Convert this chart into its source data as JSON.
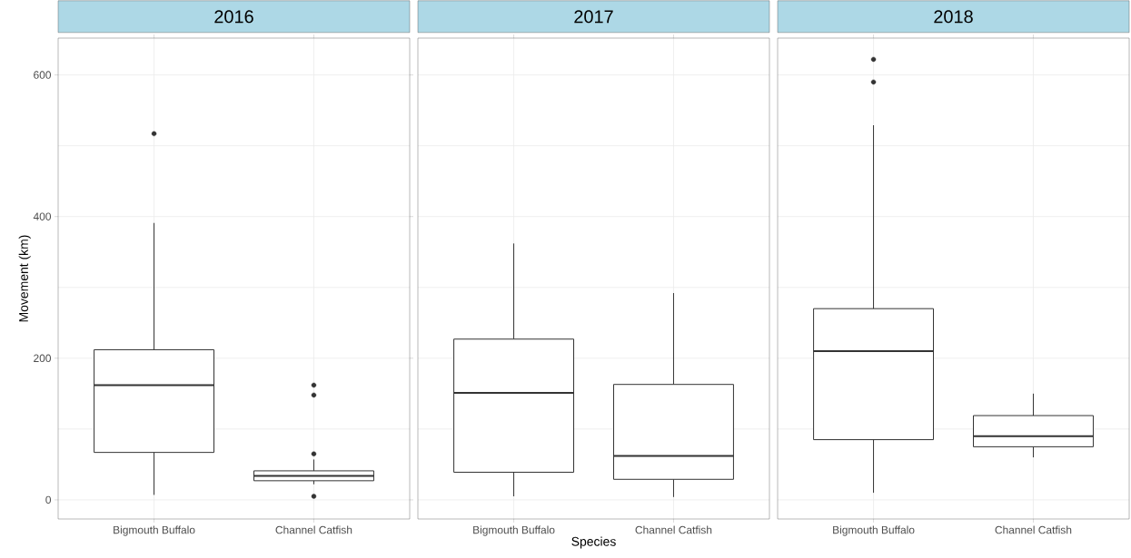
{
  "chart_data": [
    {
      "type": "box",
      "title": "2016",
      "ylabel": "Movement (km)",
      "categories": [
        "Bigmouth Buffalo",
        "Channel Catfish"
      ],
      "color": "#333333",
      "boxes": [
        {
          "low": 7,
          "q1": 67,
          "median": 162,
          "q3": 212,
          "high": 391,
          "outliers": [
            517
          ]
        },
        {
          "low": 22,
          "q1": 27,
          "median": 34,
          "q3": 41,
          "high": 57,
          "outliers": [
            5,
            65,
            148,
            162
          ]
        }
      ],
      "ylim": [
        -27,
        652
      ],
      "yticks": [
        0,
        200,
        400,
        600
      ],
      "grid": true
    },
    {
      "type": "box",
      "title": "2017",
      "xlabel": "Species",
      "categories": [
        "Bigmouth Buffalo",
        "Channel Catfish"
      ],
      "color": "#333333",
      "boxes": [
        {
          "low": 5,
          "q1": 39,
          "median": 151,
          "q3": 227,
          "high": 362
        },
        {
          "low": 4,
          "q1": 29,
          "median": 62,
          "q3": 163,
          "high": 292
        }
      ],
      "ylim": [
        -27,
        652
      ],
      "yticks": [
        0,
        200,
        400,
        600
      ],
      "grid": true,
      "tick_labels": "x"
    },
    {
      "type": "box",
      "title": "2018",
      "categories": [
        "Bigmouth Buffalo",
        "Channel Catfish"
      ],
      "color": "#333333",
      "boxes": [
        {
          "low": 10,
          "q1": 85,
          "median": 210,
          "q3": 270,
          "high": 529,
          "outliers": [
            590,
            622
          ]
        },
        {
          "low": 60,
          "q1": 75,
          "median": 90,
          "q3": 119,
          "high": 150
        }
      ],
      "ylim": [
        -27,
        652
      ],
      "yticks": [
        0,
        200,
        400,
        600
      ],
      "grid": true,
      "tick_labels": "x"
    }
  ]
}
